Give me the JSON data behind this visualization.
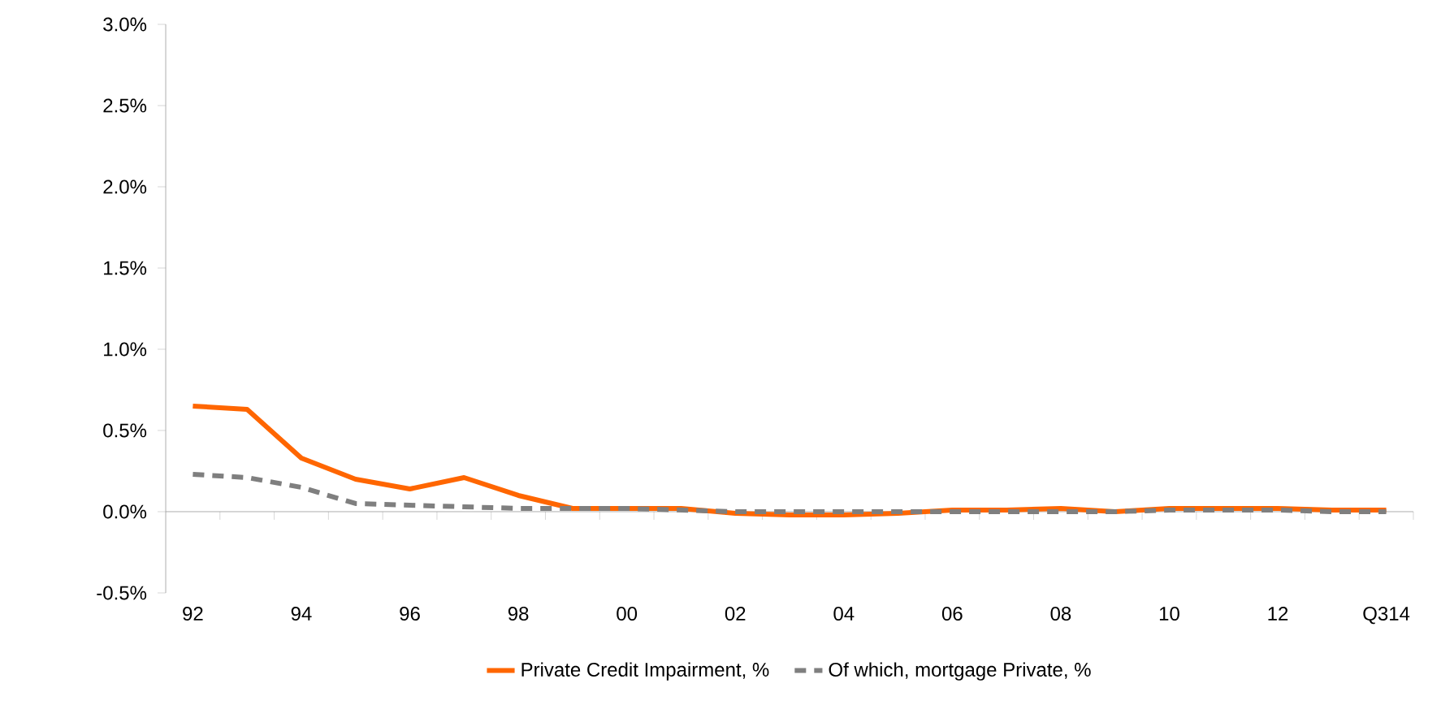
{
  "chart_data": {
    "type": "line",
    "categories": [
      "92",
      null,
      "94",
      null,
      "96",
      null,
      "98",
      null,
      "00",
      null,
      "02",
      null,
      "04",
      null,
      "06",
      null,
      "08",
      null,
      "10",
      null,
      "12",
      null,
      "Q314"
    ],
    "series": [
      {
        "name": "Private  Credit Impairment, %",
        "color": "#ff6600",
        "line_style": "solid",
        "values": [
          0.65,
          0.63,
          0.33,
          0.2,
          0.14,
          0.21,
          0.1,
          0.02,
          0.02,
          0.02,
          -0.01,
          -0.02,
          -0.02,
          -0.01,
          0.01,
          0.01,
          0.02,
          0.0,
          0.02,
          0.02,
          0.02,
          0.01,
          0.01
        ]
      },
      {
        "name": "Of which, mortgage Private, %",
        "color": "#7f7f7f",
        "line_style": "dashed",
        "values": [
          0.23,
          0.21,
          0.15,
          0.05,
          0.04,
          0.03,
          0.02,
          0.02,
          0.02,
          0.01,
          0.0,
          0.0,
          0.0,
          0.0,
          0.0,
          0.0,
          0.0,
          0.0,
          0.01,
          0.01,
          0.01,
          0.0,
          0.0
        ]
      }
    ],
    "ylim": [
      -0.5,
      3
    ],
    "yticks": [
      {
        "value": -0.5,
        "label": "-0.5%"
      },
      {
        "value": 0,
        "label": "0.0%"
      },
      {
        "value": 0.5,
        "label": "0.5%"
      },
      {
        "value": 1,
        "label": "1.0%"
      },
      {
        "value": 1.5,
        "label": "1.5%"
      },
      {
        "value": 2,
        "label": "2.0%"
      },
      {
        "value": 2.5,
        "label": "2.5%"
      },
      {
        "value": 3,
        "label": "3.0%"
      }
    ],
    "legend": "bottom",
    "marker": "none"
  }
}
